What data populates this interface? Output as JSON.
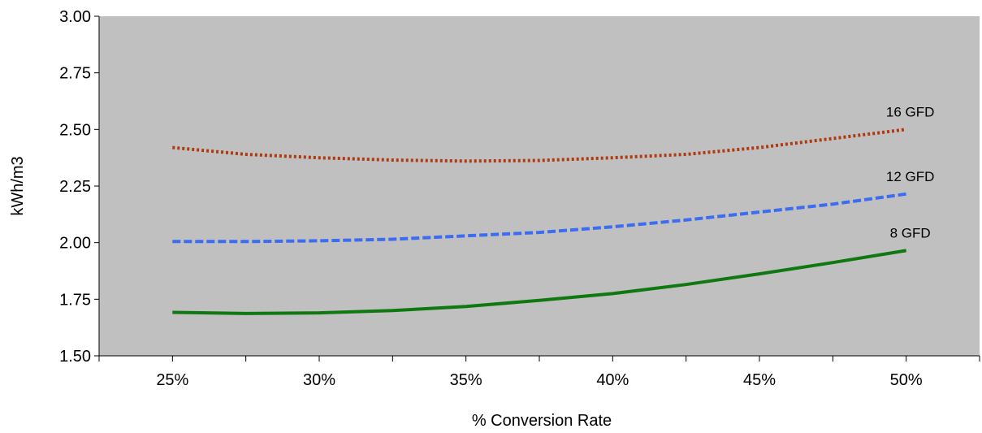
{
  "chart_data": {
    "type": "line",
    "title": "",
    "xlabel": "% Conversion Rate",
    "ylabel": "kWh/m3",
    "xlim": [
      22.5,
      52.5
    ],
    "ylim": [
      1.5,
      3.0
    ],
    "x_ticks": [
      25,
      30,
      35,
      40,
      45,
      50
    ],
    "x_tick_labels": [
      "25%",
      "30%",
      "35%",
      "40%",
      "45%",
      "50%"
    ],
    "y_ticks": [
      1.5,
      1.75,
      2.0,
      2.25,
      2.5,
      2.75,
      3.0
    ],
    "y_tick_labels": [
      "1.50",
      "1.75",
      "2.00",
      "2.25",
      "2.50",
      "2.75",
      "3.00"
    ],
    "grid": false,
    "legend": "none",
    "plot_background": "#c0c0c0",
    "x": [
      25,
      27.5,
      30,
      32.5,
      35,
      37.5,
      40,
      42.5,
      45,
      47.5,
      50
    ],
    "series": [
      {
        "name": "16 GFD",
        "values": [
          2.42,
          2.39,
          2.375,
          2.365,
          2.36,
          2.363,
          2.375,
          2.39,
          2.42,
          2.46,
          2.5
        ],
        "color": "#b03a10",
        "style": "dotted"
      },
      {
        "name": "12 GFD",
        "values": [
          2.005,
          2.005,
          2.008,
          2.015,
          2.03,
          2.045,
          2.07,
          2.1,
          2.135,
          2.17,
          2.215
        ],
        "color": "#3c6cf0",
        "style": "dashed"
      },
      {
        "name": "8 GFD",
        "values": [
          1.692,
          1.687,
          1.69,
          1.7,
          1.718,
          1.745,
          1.775,
          1.815,
          1.862,
          1.912,
          1.965
        ],
        "color": "#107810",
        "style": "solid"
      }
    ]
  }
}
